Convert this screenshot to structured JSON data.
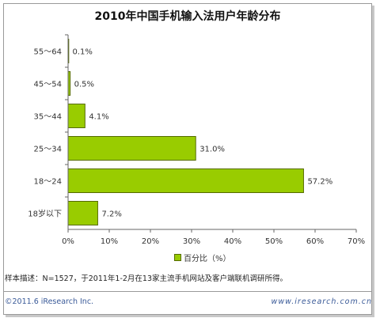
{
  "chart_data": {
    "type": "bar",
    "orientation": "horizontal",
    "title": "2010年中国手机输入法用户年龄分布",
    "categories": [
      "55～64",
      "45～54",
      "35～44",
      "25～34",
      "18～24",
      "18岁以下"
    ],
    "values": [
      0.1,
      0.5,
      4.1,
      31.0,
      57.2,
      7.2
    ],
    "value_labels": [
      "0.1%",
      "0.5%",
      "4.1%",
      "31.0%",
      "57.2%",
      "7.2%"
    ],
    "series": [
      {
        "name": "百分比（%）",
        "values": [
          0.1,
          0.5,
          4.1,
          31.0,
          57.2,
          7.2
        ]
      }
    ],
    "xlim": [
      0,
      70
    ],
    "x_ticks": [
      "0%",
      "10%",
      "20%",
      "30%",
      "40%",
      "50%",
      "60%",
      "70%"
    ],
    "grid": false,
    "legend": "bottom",
    "colors": {
      "bar": "#99cc00",
      "bar_border": "#556b00"
    }
  },
  "footer": {
    "note": "样本描述：N=1527，于2011年1-2月在13家主流手机网站及客户端联机调研所得。",
    "copyright": "©2011.6 iResearch Inc.",
    "website": "www.iresearch.com.cn"
  }
}
